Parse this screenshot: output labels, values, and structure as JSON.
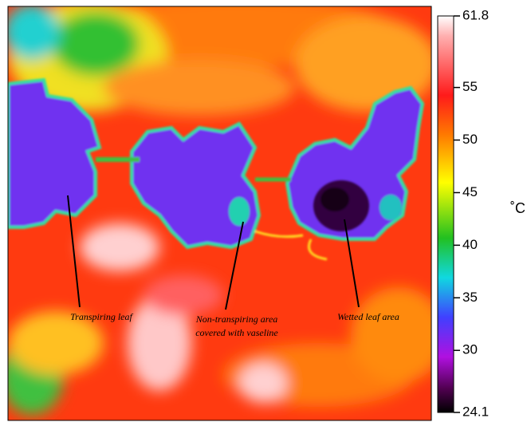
{
  "annotations": [
    {
      "lines": [
        "Transpiring leaf"
      ]
    },
    {
      "lines": [
        "Non-transpiring area",
        "covered with vaseline"
      ]
    },
    {
      "lines": [
        "Wetted leaf area"
      ]
    }
  ],
  "colorbar": {
    "range": [
      24.1,
      61.8
    ],
    "ticks": [
      61.8,
      55,
      50,
      45,
      40,
      35,
      30,
      24.1
    ],
    "unit": "˚C"
  }
}
